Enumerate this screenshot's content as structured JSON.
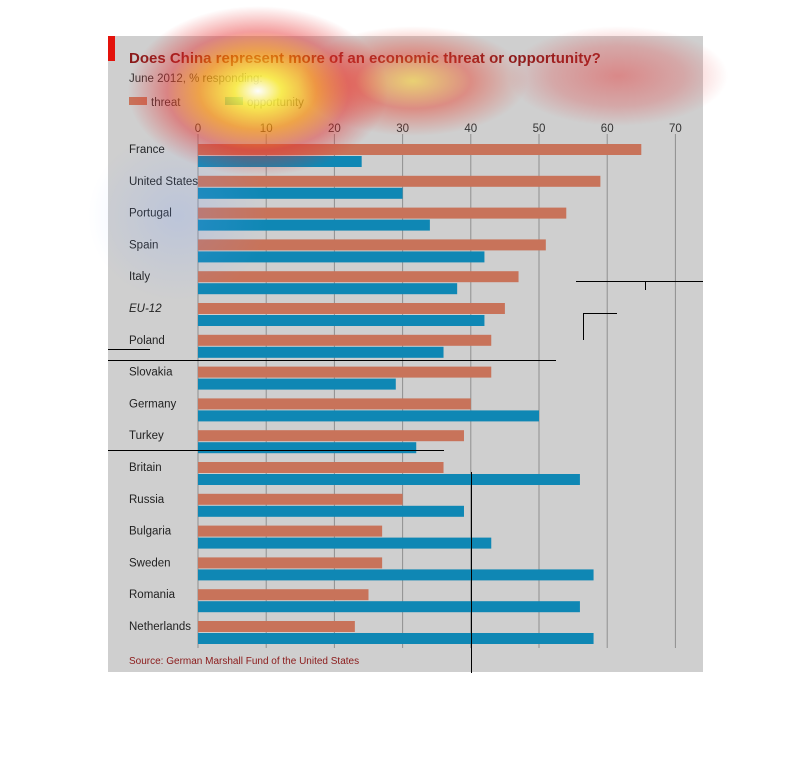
{
  "chart_data": {
    "type": "bar",
    "orientation": "horizontal",
    "title": "Does China represent more of an economic threat or opportunity?",
    "subtitle": "June 2012, % responding:",
    "source": "Source: German Marshall Fund of the United States",
    "categories": [
      "France",
      "United States",
      "Portugal",
      "Spain",
      "Italy",
      "EU-12",
      "Poland",
      "Slovakia",
      "Germany",
      "Turkey",
      "Britain",
      "Russia",
      "Bulgaria",
      "Sweden",
      "Romania",
      "Netherlands"
    ],
    "italic_categories": [
      "EU-12"
    ],
    "series": [
      {
        "name": "threat",
        "color": "#c8735a",
        "values": [
          65,
          59,
          54,
          51,
          47,
          45,
          43,
          43,
          40,
          39,
          36,
          30,
          27,
          27,
          25,
          23
        ]
      },
      {
        "name": "opportunity",
        "color": "#0f87b4",
        "values": [
          24,
          30,
          34,
          42,
          38,
          42,
          36,
          29,
          50,
          32,
          56,
          39,
          43,
          58,
          56,
          58
        ]
      }
    ],
    "xlim": [
      0,
      70
    ],
    "xticks": [
      0,
      10,
      20,
      30,
      40,
      50,
      60,
      70
    ],
    "grid": true,
    "legend_position": "top-left",
    "colors": {
      "accent": "#e3120b",
      "title": "#8b1a1a",
      "panel": "#cfcfcf",
      "grid": "#8f8f8f"
    }
  }
}
